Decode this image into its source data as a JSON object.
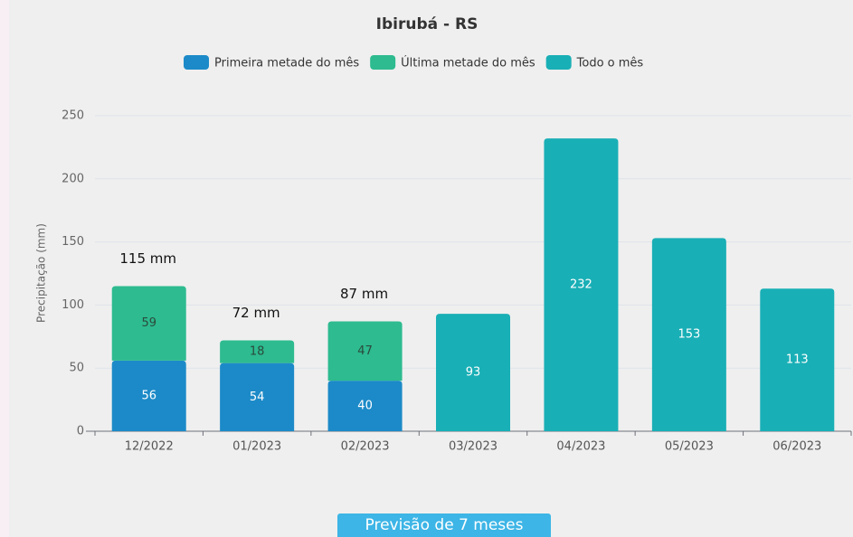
{
  "chart_data": {
    "type": "stacked_bar",
    "title": "Ibirubá - RS",
    "y_label": "Precipitação (mm)",
    "categories": [
      "12/2022",
      "01/2023",
      "02/2023",
      "03/2023",
      "04/2023",
      "05/2023",
      "06/2023"
    ],
    "series": [
      {
        "name": "Primeira metade do mês",
        "color": "#1c8ac8",
        "label_color": "#ffffff",
        "values": [
          56,
          54,
          40,
          null,
          null,
          null,
          null
        ]
      },
      {
        "name": "Última metade do mês",
        "color": "#2dbb8f",
        "label_color": "#2b4a3c",
        "values": [
          59,
          18,
          47,
          null,
          null,
          null,
          null
        ]
      },
      {
        "name": "Todo o mês",
        "color": "#19afb6",
        "label_color": "#ffffff",
        "values": [
          null,
          null,
          null,
          93,
          232,
          153,
          113
        ]
      }
    ],
    "totals": {
      "values": [
        115,
        72,
        87,
        null,
        null,
        null,
        null
      ],
      "value_labels": [
        "115 mm",
        "72 mm",
        "87 mm",
        null,
        null,
        null,
        null
      ]
    },
    "ylim": [
      0,
      250
    ],
    "yticks": [
      0,
      50,
      100,
      150,
      200,
      250
    ],
    "grid": true,
    "legend": "top"
  },
  "button": {
    "label": "Previsão de 7 meses"
  }
}
